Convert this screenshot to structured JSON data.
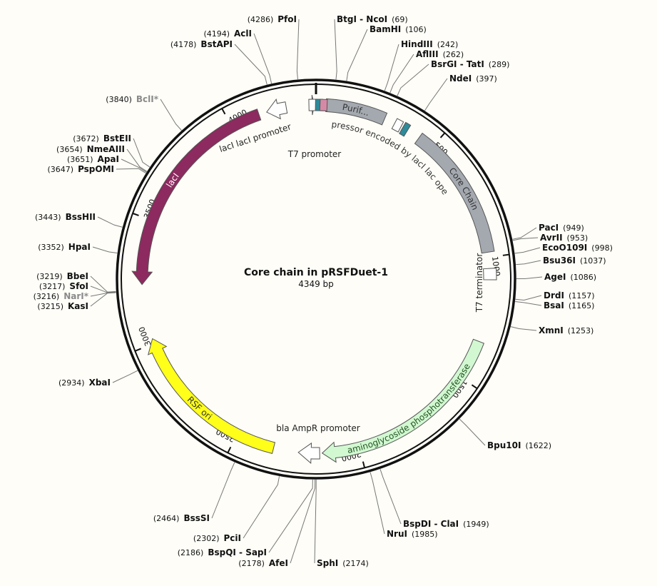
{
  "title": "Core chain in pRSFDuet-1",
  "length_label": "4349 bp",
  "total_bp": 4349,
  "ticks": [
    {
      "bp": 500,
      "label": "500"
    },
    {
      "bp": 1000,
      "label": "1000"
    },
    {
      "bp": 1500,
      "label": "1500"
    },
    {
      "bp": 2000,
      "label": "2000"
    },
    {
      "bp": 2500,
      "label": "2500"
    },
    {
      "bp": 3000,
      "label": "3000"
    },
    {
      "bp": 3500,
      "label": "3500"
    },
    {
      "bp": 4000,
      "label": "4000"
    }
  ],
  "features": [
    {
      "name": "lacI",
      "color": "#8d2a5f",
      "text_color": "#ffffff",
      "shape": "arrow",
      "strand": -1,
      "start_bp": 3240,
      "end_bp": 4118,
      "ring": 1
    },
    {
      "name": "RSF ori",
      "color": "#ffff1a",
      "text_color": "#333333",
      "shape": "arrow",
      "strand": 1,
      "start_bp": 2345,
      "end_bp": 3020,
      "ring": 1
    },
    {
      "name": "aminoglycoside phosphotransferase",
      "color": "#d2f8d2",
      "text_color": "#225522",
      "shape": "arrow",
      "strand": 1,
      "start_bp": 1340,
      "end_bp": 2150,
      "ring": 1
    },
    {
      "name": "Core Chain",
      "color": "#a4a9b0",
      "text_color": "#333333",
      "shape": "box",
      "strand": 0,
      "start_bp": 436,
      "end_bp": 980,
      "ring": 1
    },
    {
      "name": "Purif...",
      "color": "#a4a9b0",
      "text_color": "#333333",
      "shape": "box",
      "strand": 0,
      "start_bp": 40,
      "end_bp": 280,
      "ring": 1
    },
    {
      "name": "T7 terminator",
      "color": "#ffffff",
      "text_color": "#333333",
      "shape": "box",
      "strand": 0,
      "start_bp": 1045,
      "end_bp": 1090,
      "ring": 1
    },
    {
      "name": "bla AmpR promoter",
      "color": "#ffffff",
      "text_color": "#333333",
      "shape": "arrow",
      "strand": 1,
      "start_bp": 2160,
      "end_bp": 2245,
      "ring": 1
    },
    {
      "name": "lac repressor encoded by lacI lac operator",
      "color": "#2e8b9a",
      "text_color": "#333333",
      "shape": "box",
      "strand": 0,
      "start_bp": 360,
      "end_bp": 382,
      "ring": 1
    },
    {
      "name": "lacI lacI promoter",
      "color": "#ffffff",
      "text_color": "#333333",
      "shape": "arrow",
      "strand": -1,
      "start_bp": 4150,
      "end_bp": 4230,
      "ring": 1
    },
    {
      "name": "T7 promoter",
      "color": "#ffffff",
      "text_color": "#333333",
      "shape": "arrow",
      "strand": 1,
      "start_bp": 4328,
      "end_bp": 4342,
      "ring": 1
    }
  ],
  "small_marks": [
    {
      "bp": 4335,
      "color": "#ffffff",
      "ring": 0.5
    },
    {
      "bp": 12,
      "color": "#2e8b9a",
      "ring": 1
    },
    {
      "bp": 30,
      "color": "#d48aa6",
      "ring": 1
    },
    {
      "bp": 338,
      "color": "#ffffff",
      "ring": 1
    }
  ],
  "sites": [
    {
      "name": "PfoI",
      "pos": "(4286)",
      "bp": 4286,
      "side": "left",
      "lx": 416,
      "ly": 31,
      "gray": false
    },
    {
      "name": "AclI",
      "pos": "(4194)",
      "bp": 4194,
      "side": "left",
      "lx": 353,
      "ly": 51,
      "gray": false
    },
    {
      "name": "BstAPI",
      "pos": "(4178)",
      "bp": 4178,
      "side": "left",
      "lx": 326,
      "ly": 66,
      "gray": false
    },
    {
      "name": "BclI*",
      "pos": "(3840)",
      "bp": 3840,
      "side": "left",
      "lx": 222,
      "ly": 143,
      "gray": true
    },
    {
      "name": "BstEII",
      "pos": "(3672)",
      "bp": 3672,
      "side": "left",
      "lx": 184,
      "ly": 198,
      "gray": false
    },
    {
      "name": "NmeAIII",
      "pos": "(3654)",
      "bp": 3654,
      "side": "left",
      "lx": 175,
      "ly": 213,
      "gray": false
    },
    {
      "name": "ApaI",
      "pos": "(3651)",
      "bp": 3651,
      "side": "left",
      "lx": 167,
      "ly": 227,
      "gray": false
    },
    {
      "name": "PspOMI",
      "pos": "(3647)",
      "bp": 3647,
      "side": "left",
      "lx": 160,
      "ly": 241,
      "gray": false
    },
    {
      "name": "BssHII",
      "pos": "(3443)",
      "bp": 3443,
      "side": "left",
      "lx": 134,
      "ly": 308,
      "gray": false
    },
    {
      "name": "HpaI",
      "pos": "(3352)",
      "bp": 3352,
      "side": "left",
      "lx": 127,
      "ly": 350,
      "gray": false
    },
    {
      "name": "BbeI",
      "pos": "(3219)",
      "bp": 3219,
      "side": "left",
      "lx": 124,
      "ly": 391,
      "gray": false
    },
    {
      "name": "SfoI",
      "pos": "(3217)",
      "bp": 3217,
      "side": "left",
      "lx": 124,
      "ly": 405,
      "gray": false
    },
    {
      "name": "NarI*",
      "pos": "(3216)",
      "bp": 3216,
      "side": "left",
      "lx": 124,
      "ly": 419,
      "gray": true
    },
    {
      "name": "KasI",
      "pos": "(3215)",
      "bp": 3215,
      "side": "left",
      "lx": 124,
      "ly": 433,
      "gray": false
    },
    {
      "name": "XbaI",
      "pos": "(2934)",
      "bp": 2934,
      "side": "left",
      "lx": 155,
      "ly": 540,
      "gray": false
    },
    {
      "name": "BssSI",
      "pos": "(2464)",
      "bp": 2464,
      "side": "left",
      "lx": 294,
      "ly": 730,
      "gray": false
    },
    {
      "name": "PciI",
      "pos": "(2302)",
      "bp": 2302,
      "side": "left",
      "lx": 338,
      "ly": 758,
      "gray": false
    },
    {
      "name": "BspQI - SapI",
      "pos": "(2186)",
      "bp": 2186,
      "side": "left",
      "lx": 374,
      "ly": 778,
      "gray": false
    },
    {
      "name": "AfeI",
      "pos": "(2178)",
      "bp": 2178,
      "side": "left",
      "lx": 404,
      "ly": 793,
      "gray": false
    },
    {
      "name": "SphI",
      "pos": "(2174)",
      "bp": 2174,
      "side": "right",
      "lx": 444,
      "ly": 793,
      "gray": false
    },
    {
      "name": "NruI",
      "pos": "(1985)",
      "bp": 1985,
      "side": "right",
      "lx": 542,
      "ly": 752,
      "gray": false
    },
    {
      "name": "BspDI - ClaI",
      "pos": "(1949)",
      "bp": 1949,
      "side": "right",
      "lx": 565,
      "ly": 738,
      "gray": false
    },
    {
      "name": "Bpu10I",
      "pos": "(1622)",
      "bp": 1622,
      "side": "right",
      "lx": 683,
      "ly": 628,
      "gray": false
    },
    {
      "name": "XmnI",
      "pos": "(1253)",
      "bp": 1253,
      "side": "right",
      "lx": 755,
      "ly": 467,
      "gray": false
    },
    {
      "name": "BsaI",
      "pos": "(1165)",
      "bp": 1165,
      "side": "right",
      "lx": 762,
      "ly": 432,
      "gray": false
    },
    {
      "name": "DrdI",
      "pos": "(1157)",
      "bp": 1157,
      "side": "right",
      "lx": 762,
      "ly": 418,
      "gray": false
    },
    {
      "name": "AgeI",
      "pos": "(1086)",
      "bp": 1086,
      "side": "right",
      "lx": 763,
      "ly": 392,
      "gray": false
    },
    {
      "name": "Bsu36I",
      "pos": "(1037)",
      "bp": 1037,
      "side": "right",
      "lx": 761,
      "ly": 369,
      "gray": false
    },
    {
      "name": "EcoO109I",
      "pos": "(998)",
      "bp": 998,
      "side": "right",
      "lx": 760,
      "ly": 351,
      "gray": false
    },
    {
      "name": "AvrII",
      "pos": "(953)",
      "bp": 953,
      "side": "right",
      "lx": 757,
      "ly": 337,
      "gray": false
    },
    {
      "name": "PacI",
      "pos": "(949)",
      "bp": 949,
      "side": "right",
      "lx": 755,
      "ly": 323,
      "gray": false
    },
    {
      "name": "NdeI",
      "pos": "(397)",
      "bp": 397,
      "side": "right",
      "lx": 630,
      "ly": 114,
      "gray": false
    },
    {
      "name": "BsrGI - TatI",
      "pos": "(289)",
      "bp": 289,
      "side": "right",
      "lx": 604,
      "ly": 94,
      "gray": false
    },
    {
      "name": "AflIII",
      "pos": "(262)",
      "bp": 262,
      "side": "right",
      "lx": 583,
      "ly": 80,
      "gray": false
    },
    {
      "name": "HindIII",
      "pos": "(242)",
      "bp": 242,
      "side": "right",
      "lx": 562,
      "ly": 66,
      "gray": false
    },
    {
      "name": "BamHI",
      "pos": "(106)",
      "bp": 106,
      "side": "right",
      "lx": 518,
      "ly": 45,
      "gray": false
    },
    {
      "name": "BtgI - NcoI",
      "pos": "(69)",
      "bp": 69,
      "side": "right",
      "lx": 472,
      "ly": 31,
      "gray": false
    }
  ]
}
